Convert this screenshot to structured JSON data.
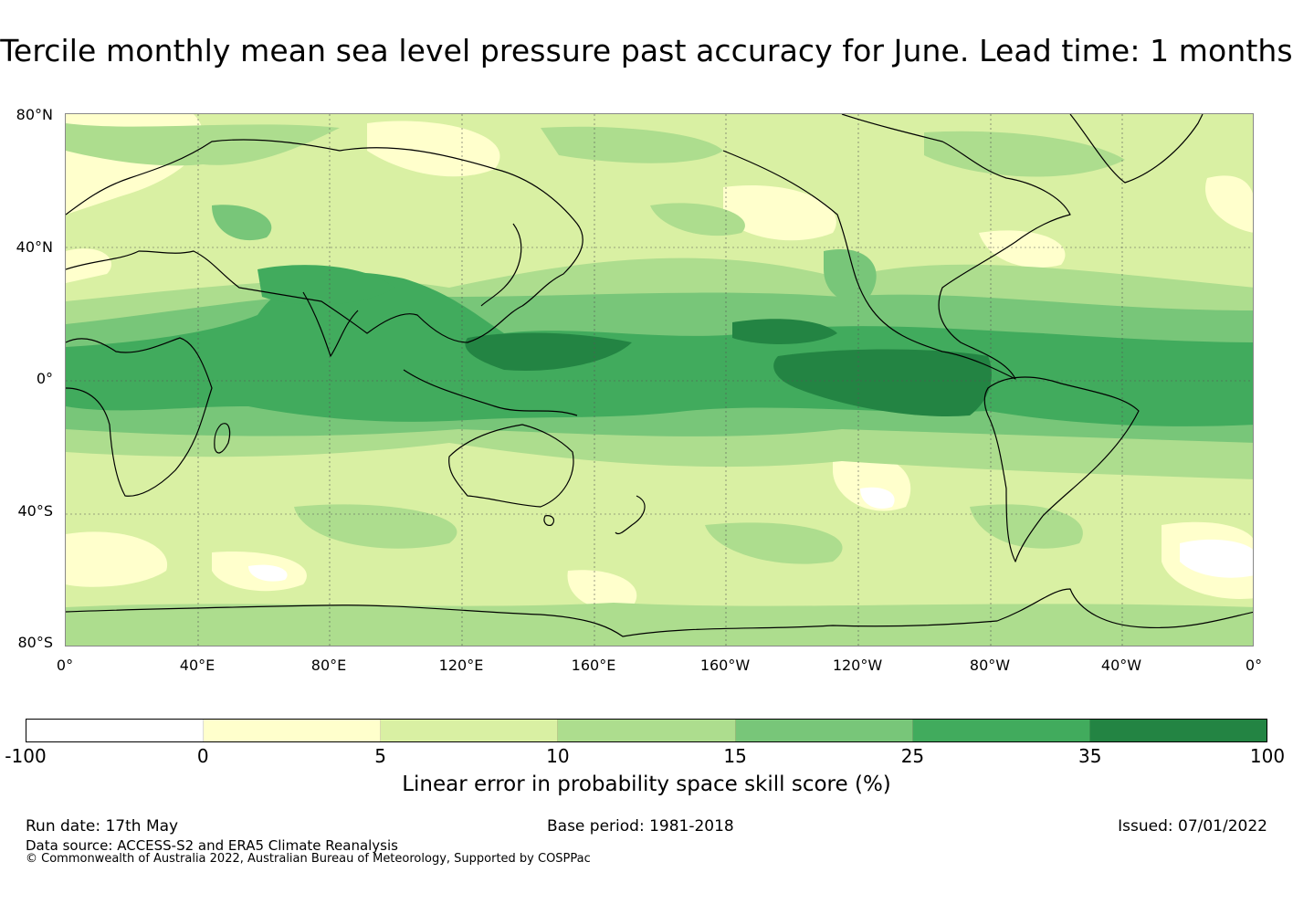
{
  "title": "Tercile monthly mean sea level pressure past accuracy for June. Lead time: 1 months",
  "map": {
    "projection": "equirectangular, 0° to 360° longitude (Pacific centred)",
    "lat_ticks": [
      "80°N",
      "40°N",
      "0°",
      "40°S",
      "80°S"
    ],
    "lon_ticks": [
      "0°",
      "40°E",
      "80°E",
      "120°E",
      "160°E",
      "160°W",
      "120°W",
      "80°W",
      "40°W",
      "0°"
    ],
    "gridlines": true
  },
  "colorbar": {
    "ticks": [
      "-100",
      "0",
      "5",
      "10",
      "15",
      "25",
      "35",
      "100"
    ],
    "colors": [
      "#ffffff",
      "#ffffcc",
      "#d9f0a3",
      "#addd8e",
      "#78c679",
      "#41ab5d",
      "#238443"
    ],
    "label": "Linear error in probability space skill score (%)"
  },
  "footer": {
    "run_date": "Run date: 17th May",
    "base_period": "Base period: 1981-2018",
    "issued": "Issued: 07/01/2022",
    "data_source": "Data source: ACCESS-S2 and ERA5 Climate Reanalysis",
    "copyright": "© Commonwealth of Australia 2022, Australian Bureau of Meteorology, Supported by COSPPac"
  }
}
